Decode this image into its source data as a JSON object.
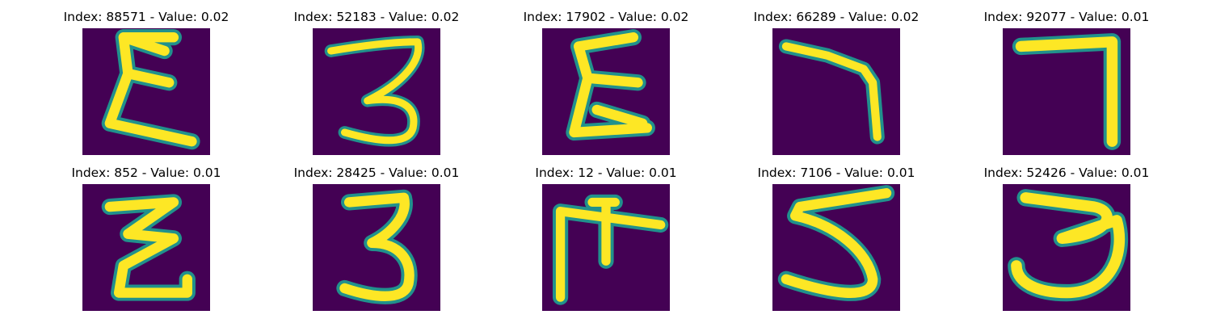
{
  "colors": {
    "background": "#440154",
    "stroke_edge": "#21918c",
    "stroke_mid": "#5ec962",
    "stroke_core": "#fde725"
  },
  "panels": [
    {
      "title": "Index: 88571 - Value: 0.02",
      "glyph": "epsilon-3"
    },
    {
      "title": "Index: 52183 - Value: 0.02",
      "glyph": "three"
    },
    {
      "title": "Index: 17902 - Value: 0.02",
      "glyph": "epsilon-3"
    },
    {
      "title": "Index: 66289 - Value: 0.02",
      "glyph": "seven"
    },
    {
      "title": "Index: 92077 - Value: 0.01",
      "glyph": "seven"
    },
    {
      "title": "Index: 852 - Value: 0.01",
      "glyph": "zigzag"
    },
    {
      "title": "Index: 28425 - Value: 0.01",
      "glyph": "three"
    },
    {
      "title": "Index: 12 - Value: 0.01",
      "glyph": "four-like"
    },
    {
      "title": "Index: 7106 - Value: 0.01",
      "glyph": "five"
    },
    {
      "title": "Index: 52426 - Value: 0.01",
      "glyph": "three"
    }
  ]
}
